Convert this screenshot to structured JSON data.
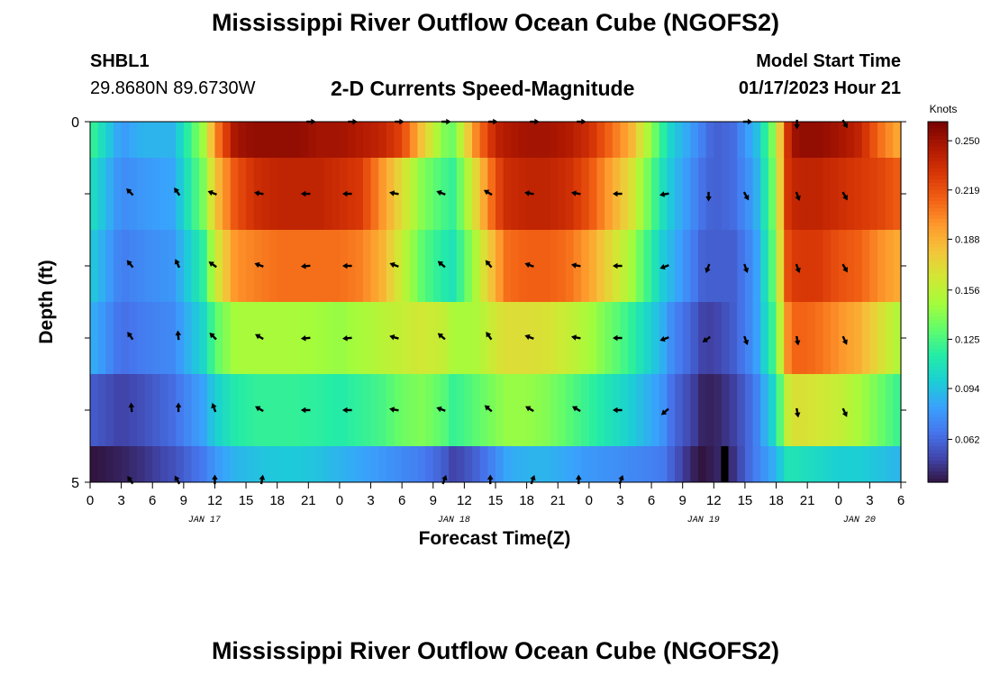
{
  "header": {
    "title": "Mississippi River Outflow Ocean Cube (NGOFS2)",
    "station_id": "SHBL1",
    "station_coords": "29.8680N  89.6730W",
    "subtitle": "2-D Currents Speed-Magnitude",
    "model_start_label": "Model Start Time",
    "model_start_value": "01/17/2023 Hour 21"
  },
  "footer": {
    "title": "Mississippi River Outflow Ocean Cube (NGOFS2)"
  },
  "chart_data": {
    "type": "heatmap",
    "title": "2-D Currents Speed-Magnitude",
    "xlabel": "Forecast Time(Z)",
    "ylabel": "Depth (ft)",
    "y_tick_labels": [
      "0",
      "5"
    ],
    "ylim": [
      0,
      5
    ],
    "x_tick_labels": [
      "0",
      "3",
      "6",
      "9",
      "12",
      "15",
      "18",
      "21",
      "0",
      "3",
      "6",
      "9",
      "12",
      "15",
      "18",
      "21",
      "0",
      "3",
      "6",
      "9",
      "12",
      "15",
      "18",
      "21",
      "0",
      "3",
      "6"
    ],
    "x_hours": [
      0,
      3,
      6,
      9,
      12,
      15,
      18,
      21,
      24,
      27,
      30,
      33,
      36,
      39,
      42,
      45,
      48,
      51,
      54,
      57,
      60,
      63,
      66,
      69,
      72,
      75,
      78
    ],
    "xlim": [
      0,
      78
    ],
    "date_labels": [
      {
        "text": "JAN 17",
        "hour": 11
      },
      {
        "text": "JAN 18",
        "hour": 35
      },
      {
        "text": "JAN 19",
        "hour": 59
      },
      {
        "text": "JAN 20",
        "hour": 74
      }
    ],
    "colorbar": {
      "unit_label": "Knots",
      "min": 0.035,
      "max": 0.262,
      "ticks": [
        "0.250",
        "0.219",
        "0.188",
        "0.156",
        "0.125",
        "0.094",
        "0.062"
      ],
      "tick_values": [
        0.25,
        0.219,
        0.188,
        0.156,
        0.125,
        0.094,
        0.062
      ],
      "colors": [
        "#30123b",
        "#4145ab",
        "#4675ed",
        "#39a2fc",
        "#1bcfd4",
        "#24eca6",
        "#61fc6c",
        "#a4fc3b",
        "#d1e834",
        "#f3c63a",
        "#fe9b2d",
        "#f36315",
        "#d93806",
        "#b11901",
        "#7a0403"
      ]
    },
    "layer_edges": [
      0,
      0.5,
      1.5,
      2.5,
      3.5,
      4.5,
      5.0
    ],
    "time_keys": [
      0,
      3,
      5,
      8,
      11,
      12,
      14,
      16,
      18,
      20,
      22,
      24,
      26,
      28,
      30,
      32,
      34,
      35,
      37,
      39,
      40,
      42,
      44,
      46,
      48,
      52,
      55,
      56,
      58,
      59,
      60,
      62,
      63,
      64,
      66,
      67,
      68,
      70,
      72,
      74,
      76,
      78
    ],
    "speed_profiles": [
      [
        0.125,
        0.08,
        0.09,
        0.09,
        0.15,
        0.2,
        0.25,
        0.255,
        0.255,
        0.255,
        0.25,
        0.25,
        0.245,
        0.24,
        0.225,
        0.18,
        0.14,
        0.135,
        0.2,
        0.24,
        0.245,
        0.25,
        0.25,
        0.245,
        0.235,
        0.19,
        0.12,
        0.1,
        0.08,
        0.07,
        0.06,
        0.065,
        0.08,
        0.09,
        0.15,
        0.23,
        0.255,
        0.255,
        0.25,
        0.24,
        0.21,
        0.19
      ],
      [
        0.11,
        0.075,
        0.08,
        0.085,
        0.14,
        0.18,
        0.22,
        0.235,
        0.24,
        0.24,
        0.24,
        0.235,
        0.23,
        0.2,
        0.17,
        0.14,
        0.125,
        0.12,
        0.17,
        0.22,
        0.235,
        0.24,
        0.24,
        0.235,
        0.22,
        0.17,
        0.11,
        0.095,
        0.075,
        0.065,
        0.06,
        0.065,
        0.075,
        0.085,
        0.145,
        0.23,
        0.24,
        0.24,
        0.235,
        0.23,
        0.225,
        0.215
      ],
      [
        0.1,
        0.07,
        0.075,
        0.08,
        0.12,
        0.16,
        0.2,
        0.205,
        0.21,
        0.21,
        0.21,
        0.21,
        0.205,
        0.19,
        0.16,
        0.13,
        0.115,
        0.11,
        0.15,
        0.19,
        0.21,
        0.215,
        0.215,
        0.21,
        0.195,
        0.15,
        0.1,
        0.09,
        0.07,
        0.06,
        0.06,
        0.06,
        0.07,
        0.08,
        0.14,
        0.22,
        0.23,
        0.23,
        0.22,
        0.215,
        0.2,
        0.19
      ],
      [
        0.09,
        0.065,
        0.07,
        0.075,
        0.105,
        0.13,
        0.15,
        0.15,
        0.15,
        0.15,
        0.148,
        0.145,
        0.15,
        0.155,
        0.16,
        0.165,
        0.16,
        0.15,
        0.15,
        0.165,
        0.17,
        0.17,
        0.168,
        0.16,
        0.15,
        0.12,
        0.09,
        0.075,
        0.06,
        0.05,
        0.05,
        0.06,
        0.07,
        0.08,
        0.13,
        0.2,
        0.215,
        0.21,
        0.2,
        0.19,
        0.17,
        0.15
      ],
      [
        0.06,
        0.05,
        0.055,
        0.065,
        0.085,
        0.1,
        0.115,
        0.12,
        0.12,
        0.12,
        0.118,
        0.115,
        0.12,
        0.125,
        0.135,
        0.14,
        0.13,
        0.12,
        0.13,
        0.14,
        0.145,
        0.145,
        0.14,
        0.13,
        0.12,
        0.1,
        0.08,
        0.065,
        0.05,
        0.04,
        0.04,
        0.05,
        0.06,
        0.07,
        0.11,
        0.16,
        0.17,
        0.165,
        0.16,
        0.15,
        0.135,
        0.12
      ],
      [
        0.035,
        0.04,
        0.045,
        0.055,
        0.07,
        0.08,
        0.09,
        0.095,
        0.098,
        0.098,
        0.095,
        0.09,
        0.085,
        0.08,
        0.075,
        0.07,
        0.06,
        0.05,
        0.06,
        0.075,
        0.085,
        0.09,
        0.09,
        0.085,
        0.08,
        0.075,
        0.07,
        0.06,
        0.04,
        0.035,
        0.04,
        0.045,
        0.06,
        0.07,
        0.09,
        0.11,
        0.11,
        0.105,
        0.1,
        0.1,
        0.095,
        0.09
      ]
    ],
    "dropout_band": {
      "hours": [
        60.7,
        61.4
      ],
      "depth": [
        4.5,
        5.0
      ]
    },
    "arrow_hours": [
      4,
      8.5,
      12,
      16.5,
      21,
      25,
      29.5,
      34,
      38.5,
      42.5,
      47,
      51,
      55.5,
      59.5,
      63,
      68,
      72.5
    ],
    "arrow_depths": [
      0,
      1,
      2,
      3,
      4,
      5
    ],
    "arrow_angles_deg": [
      [
        null,
        null,
        null,
        null,
        0,
        0,
        0,
        0,
        0,
        0,
        0,
        null,
        null,
        null,
        0,
        270,
        300
      ],
      [
        135,
        125,
        160,
        170,
        180,
        180,
        170,
        160,
        150,
        170,
        170,
        180,
        190,
        270,
        300,
        290,
        300
      ],
      [
        130,
        115,
        145,
        160,
        185,
        180,
        160,
        140,
        130,
        160,
        170,
        180,
        200,
        250,
        290,
        290,
        300
      ],
      [
        125,
        95,
        135,
        150,
        185,
        185,
        165,
        140,
        125,
        160,
        170,
        180,
        200,
        215,
        290,
        280,
        295
      ],
      [
        95,
        90,
        110,
        150,
        180,
        180,
        170,
        160,
        140,
        150,
        150,
        180,
        220,
        null,
        null,
        280,
        295
      ],
      [
        125,
        120,
        90,
        80,
        null,
        null,
        null,
        70,
        90,
        70,
        90,
        70,
        null,
        null,
        null,
        null,
        null
      ]
    ]
  }
}
